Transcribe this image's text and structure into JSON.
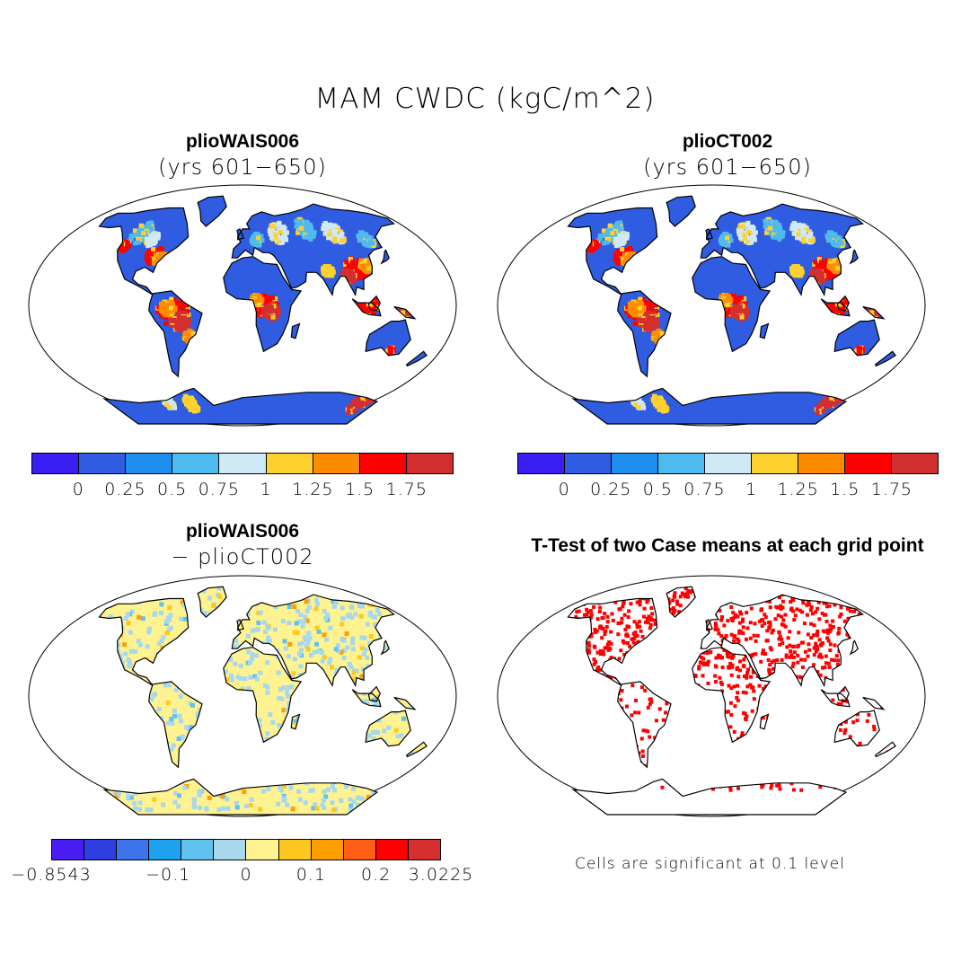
{
  "figure": {
    "title": "MAM CWDC (kgC/m^2)"
  },
  "panels": [
    {
      "id": "plioWAIS006",
      "title": "plioWAIS006",
      "subtitle": "(yrs 601−650)"
    },
    {
      "id": "plioCT002",
      "title": "plioCT002",
      "subtitle": "(yrs 601−650)"
    },
    {
      "id": "diff",
      "title": "plioWAIS006",
      "subtitle": "− plioCT002"
    },
    {
      "id": "ttest",
      "title": "T-Test of two Case means at each grid point",
      "subtitle": ""
    }
  ],
  "colorbars": {
    "absolute": {
      "colors": [
        "#3a1ef2",
        "#2f5ce0",
        "#1e8ef0",
        "#4fbaee",
        "#cfe9f7",
        "#ffd12e",
        "#ff8c00",
        "#fe0000",
        "#d42f2f"
      ],
      "ticks": [
        "0",
        "0.25",
        "0.5",
        "0.75",
        "1",
        "1.25",
        "1.5",
        "1.75"
      ]
    },
    "difference": {
      "colors": [
        "#4a1ef2",
        "#2e3ee0",
        "#3d74ec",
        "#1ea2f0",
        "#61c2ef",
        "#a8d8ee",
        "#fff290",
        "#ffc820",
        "#ff9e00",
        "#ff5e15",
        "#fe0000",
        "#d62f2f"
      ],
      "ticks": [
        "−0.8543",
        "−0.1",
        "0",
        "0.1",
        "0.2",
        "3.0225"
      ]
    }
  },
  "footnote": "Cells are significant at 0.1 level",
  "map_colors": {
    "ocean": "#ffffff",
    "outline": "#000000",
    "land_base": "#2f5ce0",
    "diff_base": "#fff290",
    "ttest_sig": "#fe0000"
  }
}
